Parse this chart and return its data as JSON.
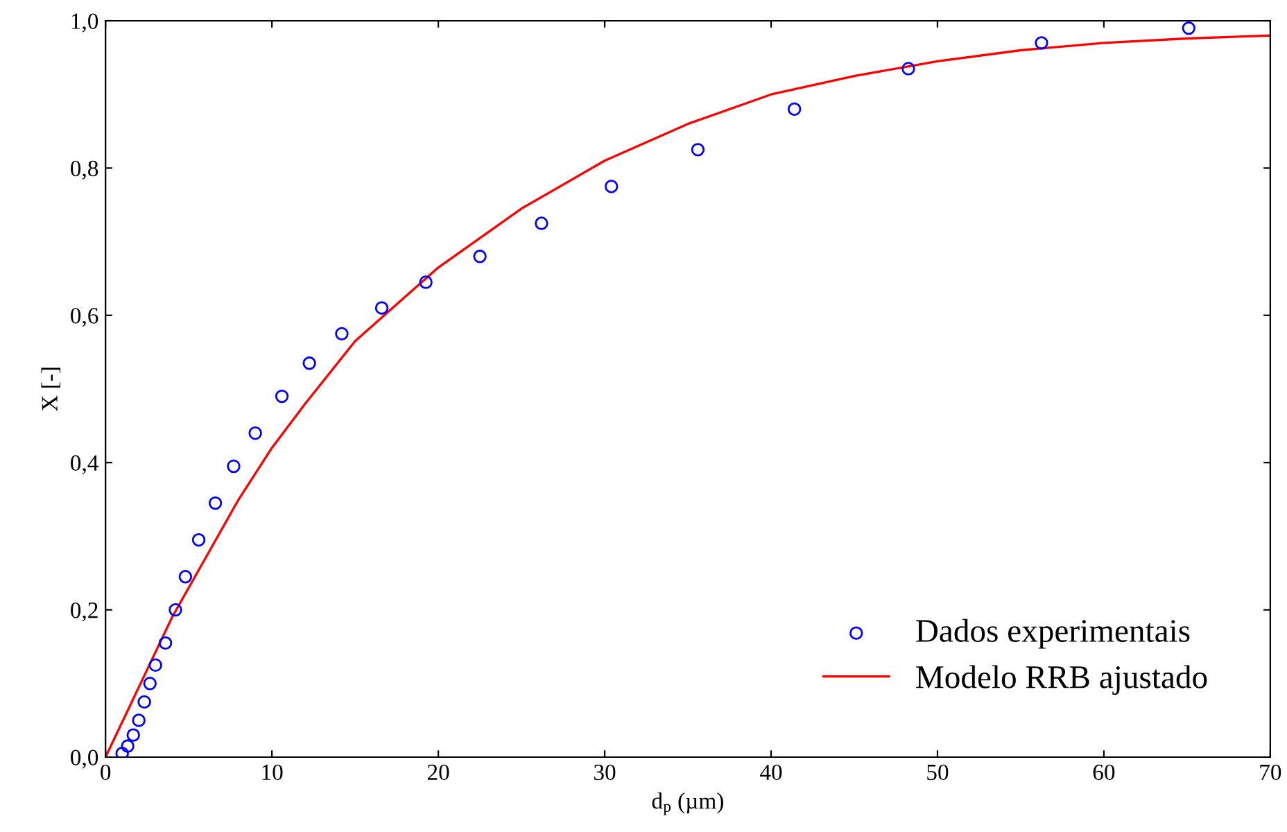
{
  "chart_data": {
    "type": "scatter",
    "xlabel": "d$_{p}$ (µm)",
    "ylabel": "X [-]",
    "xlim": [
      0,
      70
    ],
    "xticks": [
      0,
      10,
      20,
      30,
      40,
      50,
      60,
      70
    ],
    "ylim": [
      0,
      1
    ],
    "yticks": [
      {
        "value": 0,
        "label": "0,0"
      },
      {
        "value": 0.2,
        "label": "0,2"
      },
      {
        "value": 0.4,
        "label": "0,4"
      },
      {
        "value": 0.6,
        "label": "0,6"
      },
      {
        "value": 0.8,
        "label": "0,8"
      },
      {
        "value": 1,
        "label": "1,0"
      }
    ],
    "grid": false,
    "legend": "bottom right",
    "series": [
      {
        "name": "Dados experimentais",
        "marker": "circle",
        "color": "#0000ff",
        "x": [
          1.0,
          1.33,
          1.67,
          2.0,
          2.33,
          2.67,
          3.0,
          3.6,
          4.2,
          4.8,
          5.6,
          6.6,
          7.7,
          9.0,
          10.6,
          12.25,
          14.2,
          16.6,
          19.25,
          22.5,
          26.2,
          30.4,
          35.6,
          41.4,
          48.25,
          56.25,
          65.1
        ],
        "values": [
          0.005,
          0.015,
          0.03,
          0.05,
          0.075,
          0.1,
          0.125,
          0.155,
          0.2,
          0.245,
          0.295,
          0.345,
          0.395,
          0.44,
          0.49,
          0.535,
          0.575,
          0.61,
          0.645,
          0.68,
          0.725,
          0.775,
          0.825,
          0.88,
          0.935,
          0.97,
          0.99
        ]
      },
      {
        "name": "Modelo RRB ajustado",
        "type": "line",
        "marker": "none",
        "line_style": "solid",
        "color": "#ff0000",
        "x": [
          0,
          2,
          4,
          6,
          8,
          10,
          12,
          15,
          20,
          25,
          30,
          35,
          40,
          45,
          50,
          55,
          60,
          65,
          70
        ],
        "values": [
          0,
          0.095,
          0.19,
          0.27,
          0.35,
          0.42,
          0.48,
          0.565,
          0.665,
          0.745,
          0.81,
          0.86,
          0.9,
          0.925,
          0.945,
          0.96,
          0.97,
          0.976,
          0.98
        ]
      }
    ]
  }
}
